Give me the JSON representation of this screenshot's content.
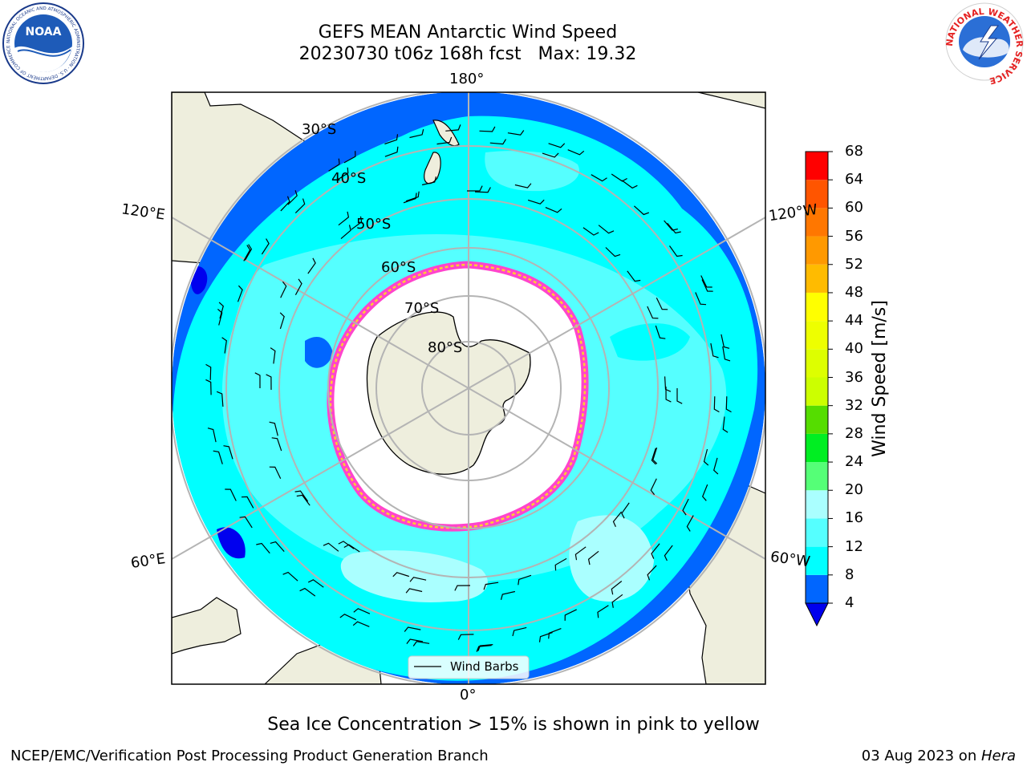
{
  "header": {
    "title_line1": "GEFS MEAN Antarctic Wind Speed",
    "title_line2": "20230730 t06z 168h fcst   Max: 19.32"
  },
  "map": {
    "projection": "south-polar-stereographic",
    "meridian_labels": [
      "180°",
      "120°E",
      "120°W",
      "60°E",
      "60°W",
      "0°"
    ],
    "latitude_labels": [
      "30°S",
      "40°S",
      "50°S",
      "60°S",
      "70°S",
      "80°S"
    ],
    "legend_label": "Wind Barbs",
    "colors": {
      "land": "#eeeedd",
      "ice_free_ocean_low": "#0066ff",
      "deep_blue": "#0000ee",
      "cyan_8_12": "#00ffff",
      "cyan_12_16": "#55ffff",
      "cyan_16_20": "#aaffff",
      "sea_ice_edge": "#ff44cc",
      "sea_ice_edge_inner": "#ffcc33",
      "grid": "#b4b4b4"
    }
  },
  "colorbar": {
    "label": "Wind Speed [m/s]",
    "ticks": [
      "68",
      "64",
      "60",
      "56",
      "52",
      "48",
      "44",
      "40",
      "36",
      "32",
      "28",
      "24",
      "20",
      "16",
      "12",
      "8",
      "4"
    ],
    "bins": [
      {
        "from": 4,
        "to": 8,
        "color": "#0066ff"
      },
      {
        "from": 8,
        "to": 12,
        "color": "#00ffff"
      },
      {
        "from": 12,
        "to": 16,
        "color": "#55ffff"
      },
      {
        "from": 16,
        "to": 20,
        "color": "#aaffff"
      },
      {
        "from": 20,
        "to": 24,
        "color": "#55ff77"
      },
      {
        "from": 24,
        "to": 28,
        "color": "#00ee22"
      },
      {
        "from": 28,
        "to": 32,
        "color": "#55dd00"
      },
      {
        "from": 32,
        "to": 36,
        "color": "#ccff00"
      },
      {
        "from": 36,
        "to": 40,
        "color": "#ddff00"
      },
      {
        "from": 40,
        "to": 44,
        "color": "#eeff00"
      },
      {
        "from": 44,
        "to": 48,
        "color": "#ffff00"
      },
      {
        "from": 48,
        "to": 52,
        "color": "#ffbb00"
      },
      {
        "from": 52,
        "to": 56,
        "color": "#ff9900"
      },
      {
        "from": 56,
        "to": 60,
        "color": "#ff7700"
      },
      {
        "from": 60,
        "to": 64,
        "color": "#ff5500"
      },
      {
        "from": 64,
        "to": 68,
        "color": "#ff0000"
      }
    ],
    "under_color": "#0000ee"
  },
  "caption": "Sea Ice Concentration > 15% is shown in pink to yellow",
  "footer": {
    "left": "NCEP/EMC/Verification Post Processing Product Generation Branch",
    "right_date": "03 Aug 2023 on ",
    "right_machine": "Hera"
  },
  "logos": {
    "left": "NOAA",
    "left_ring_text": "NATIONAL OCEANIC AND ATMOSPHERIC ADMINISTRATION · U.S. DEPARTMENT OF COMMERCE",
    "right_ring_text": "NATIONAL WEATHER SERVICE"
  }
}
